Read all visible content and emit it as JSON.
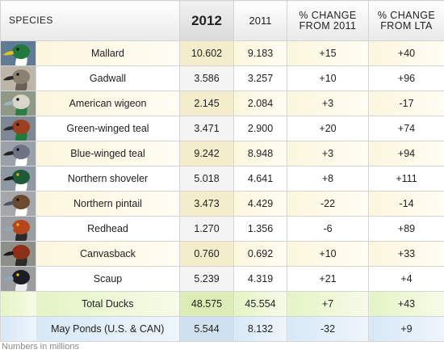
{
  "header": {
    "species": "SPECIES",
    "y2012": "2012",
    "y2011": "2011",
    "pct_2011_line1": "% CHANGE",
    "pct_2011_line2": "FROM 2011",
    "pct_lta_line1": "% CHANGE",
    "pct_lta_line2": "FROM LTA"
  },
  "rows": [
    {
      "species": "Mallard",
      "y2012": "10.602",
      "y2011": "9.183",
      "pct_2011": "+15",
      "pct_lta": "+40",
      "icon": "mallard-head-icon",
      "colors": {
        "bg": "#5f7a93",
        "head": "#1f7a3c",
        "bill": "#e0c01e",
        "eye": "#111111",
        "neck": "#ffffff"
      }
    },
    {
      "species": "Gadwall",
      "y2012": "3.586",
      "y2011": "3.257",
      "pct_2011": "+10",
      "pct_lta": "+96",
      "icon": "gadwall-head-icon",
      "colors": {
        "bg": "#bdb6a8",
        "head": "#8c8070",
        "bill": "#2b2b2b",
        "eye": "#111111",
        "neck": "#6b6055"
      }
    },
    {
      "species": "American wigeon",
      "y2012": "2.145",
      "y2011": "2.084",
      "pct_2011": "+3",
      "pct_lta": "-17",
      "icon": "american-wigeon-head-icon",
      "colors": {
        "bg": "#8e9a86",
        "head": "#d9d5c8",
        "bill": "#9fb3c4",
        "eye": "#111111",
        "neck": "#2e7d45"
      }
    },
    {
      "species": "Green-winged teal",
      "y2012": "3.471",
      "y2011": "2.900",
      "pct_2011": "+20",
      "pct_lta": "+74",
      "icon": "green-winged-teal-head-icon",
      "colors": {
        "bg": "#7e8794",
        "head": "#9b3f1f",
        "bill": "#2b2b2b",
        "eye": "#111111",
        "neck": "#1f7a3c"
      }
    },
    {
      "species": "Blue-winged teal",
      "y2012": "9.242",
      "y2011": "8.948",
      "pct_2011": "+3",
      "pct_lta": "+94",
      "icon": "blue-winged-teal-head-icon",
      "colors": {
        "bg": "#9aa1a9",
        "head": "#6d7385",
        "bill": "#222222",
        "eye": "#111111",
        "neck": "#ffffff"
      }
    },
    {
      "species": "Northern shoveler",
      "y2012": "5.018",
      "y2011": "4.641",
      "pct_2011": "+8",
      "pct_lta": "+111",
      "icon": "northern-shoveler-head-icon",
      "colors": {
        "bg": "#8f99a3",
        "head": "#1e5a3a",
        "bill": "#1a1a1a",
        "eye": "#e0b020",
        "neck": "#ffffff"
      }
    },
    {
      "species": "Northern pintail",
      "y2012": "3.473",
      "y2011": "4.429",
      "pct_2011": "-22",
      "pct_lta": "-14",
      "icon": "northern-pintail-head-icon",
      "colors": {
        "bg": "#a5a7aa",
        "head": "#6b4a2f",
        "bill": "#4a5563",
        "eye": "#111111",
        "neck": "#ffffff"
      }
    },
    {
      "species": "Redhead",
      "y2012": "1.270",
      "y2011": "1.356",
      "pct_2011": "-6",
      "pct_lta": "+89",
      "icon": "redhead-head-icon",
      "colors": {
        "bg": "#9a9ea3",
        "head": "#b5461c",
        "bill": "#8fa6b8",
        "eye": "#e0b020",
        "neck": "#2b2b2b"
      }
    },
    {
      "species": "Canvasback",
      "y2012": "0.760",
      "y2011": "0.692",
      "pct_2011": "+10",
      "pct_lta": "+33",
      "icon": "canvasback-head-icon",
      "colors": {
        "bg": "#8f8f8a",
        "head": "#8c2f17",
        "bill": "#1a1a1a",
        "eye": "#c21f1f",
        "neck": "#2b2b2b"
      }
    },
    {
      "species": "Scaup",
      "y2012": "5.239",
      "y2011": "4.319",
      "pct_2011": "+21",
      "pct_lta": "+4",
      "icon": "scaup-head-icon",
      "colors": {
        "bg": "#9a9da0",
        "head": "#1c1c24",
        "bill": "#8fa6b8",
        "eye": "#e0c020",
        "neck": "#eeeeee"
      }
    }
  ],
  "total": {
    "label": "Total Ducks",
    "y2012": "48.575",
    "y2011": "45.554",
    "pct_2011": "+7",
    "pct_lta": "+43"
  },
  "ponds": {
    "label": "May Ponds (U.S. & CAN)",
    "y2012": "5.544",
    "y2011": "8.132",
    "pct_2011": "-32",
    "pct_lta": "+9"
  },
  "footnote": "Numbers in millions"
}
